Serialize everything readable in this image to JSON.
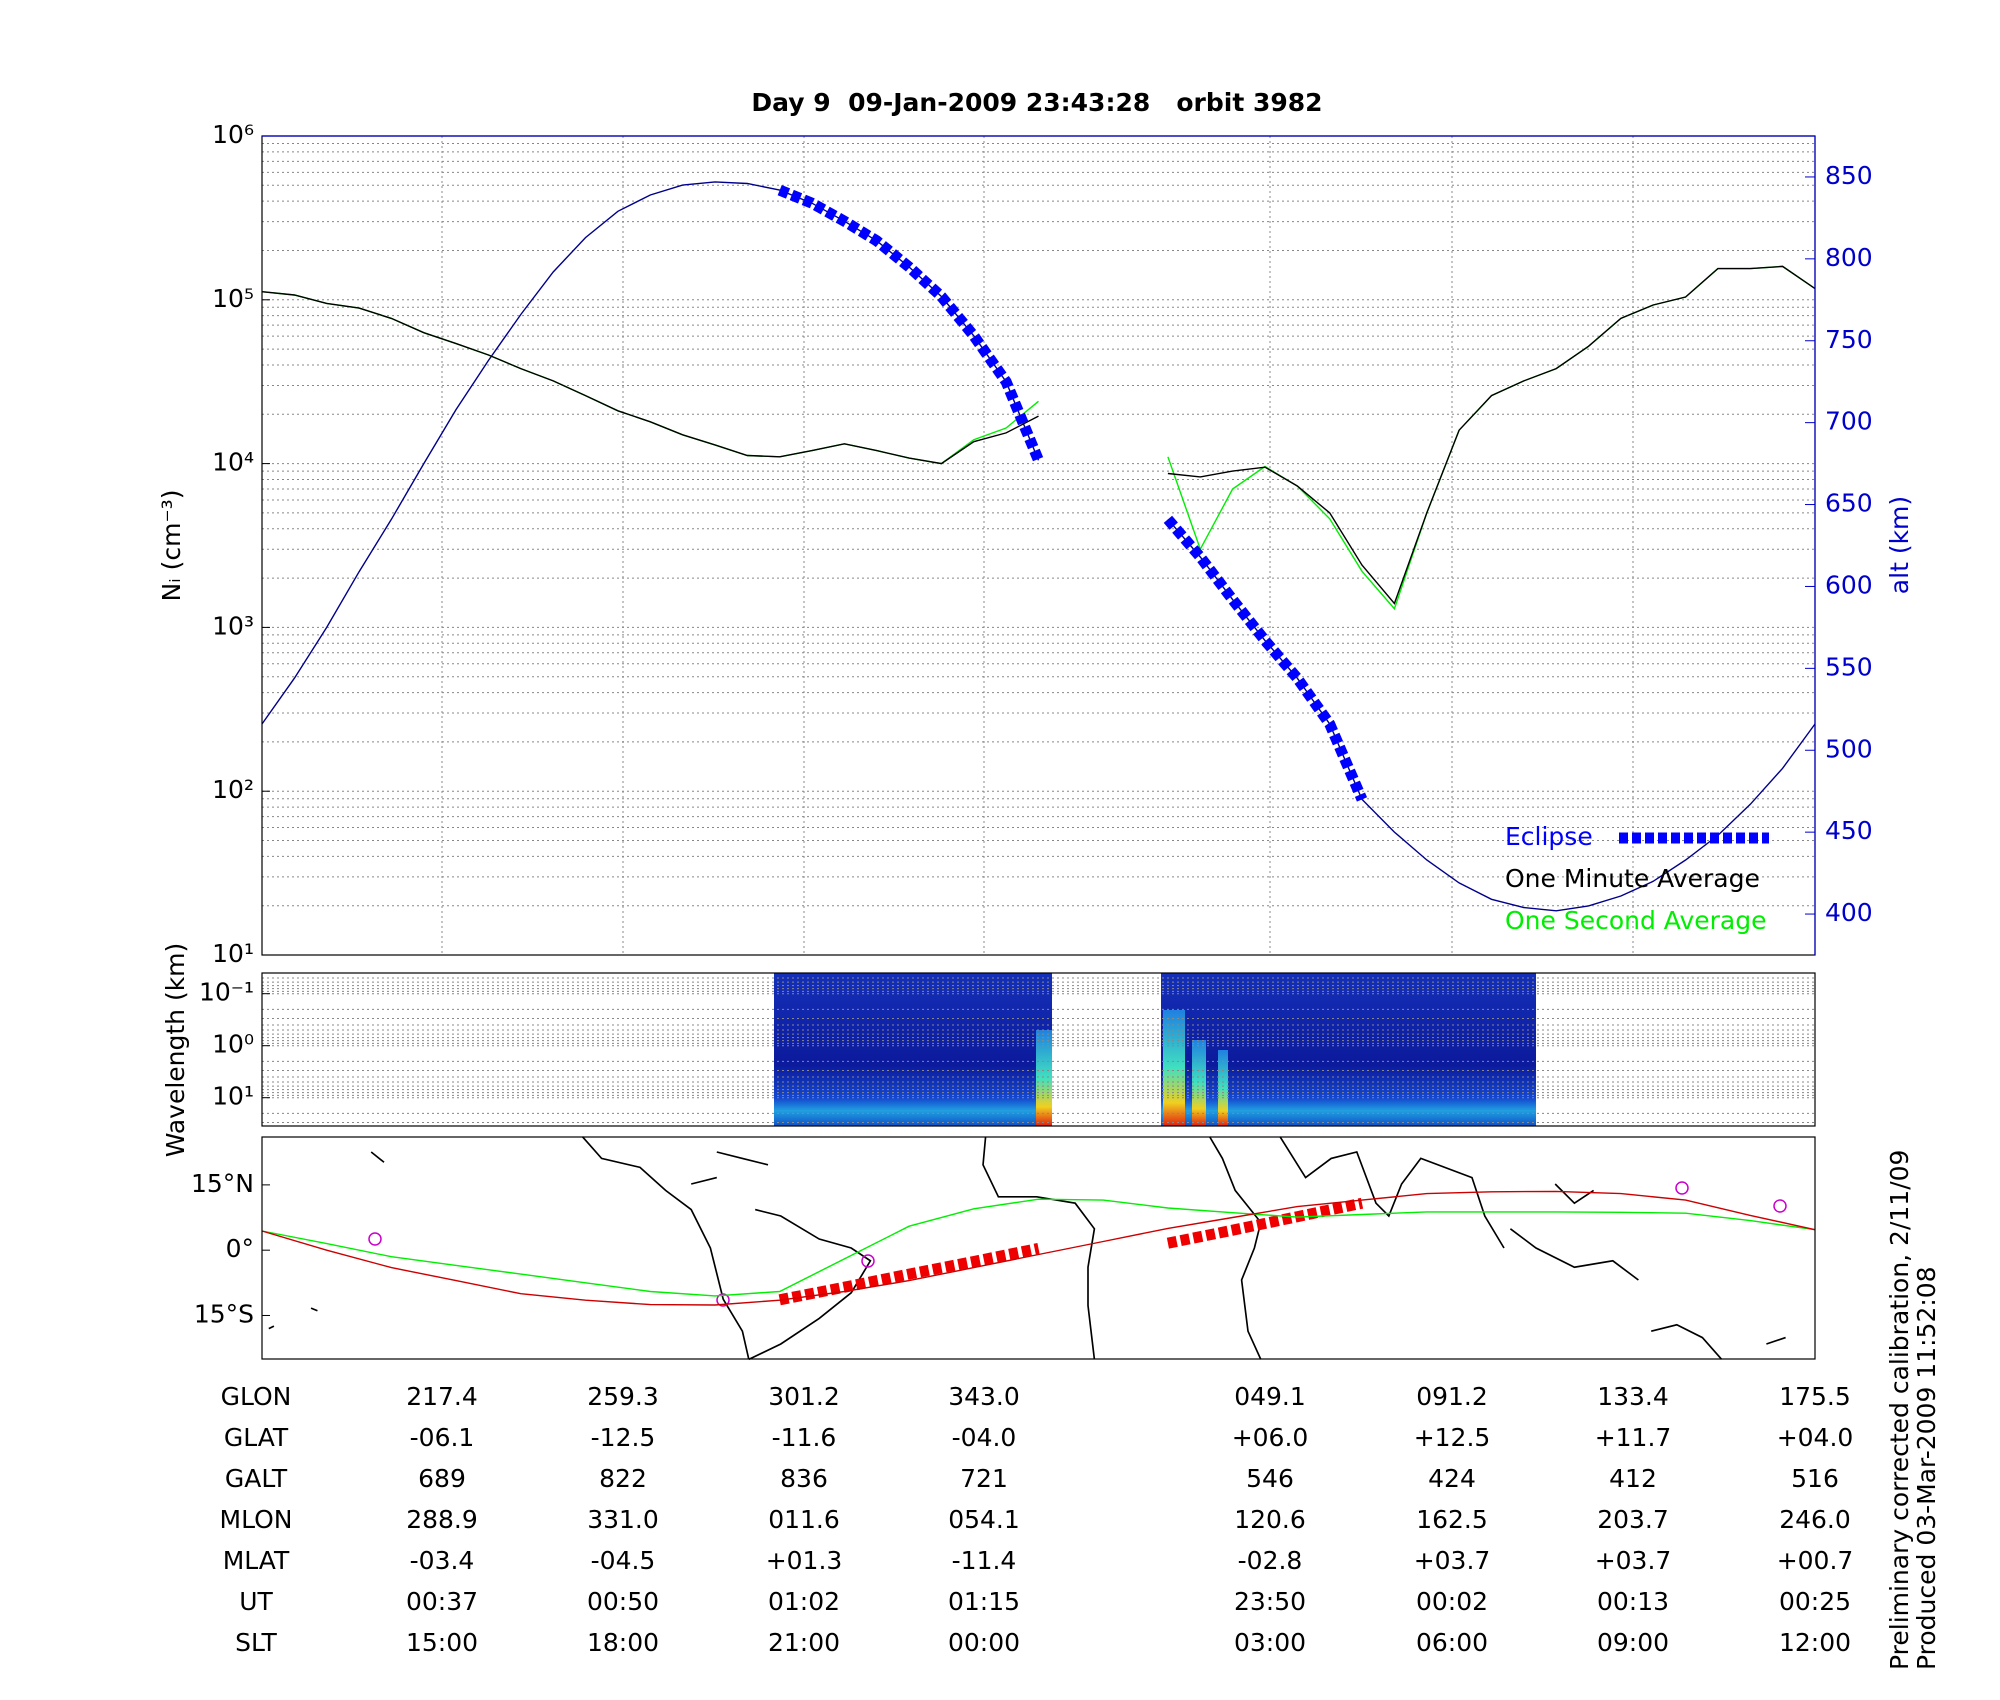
{
  "chart_data": [
    {
      "type": "line",
      "title": "Day 9  09-Jan-2009 23:43:28   orbit 3982",
      "ylabel": "Nᵢ (cm⁻³)",
      "y2label": "alt (km)",
      "log_y": true,
      "grid": true,
      "legend": "lower right",
      "y2color": "#0000cc",
      "ylim": [
        10,
        1000000
      ],
      "yticks": [
        {
          "value": 10,
          "label": "10¹"
        },
        {
          "value": 100,
          "label": "10²"
        },
        {
          "value": 1000,
          "label": "10³"
        },
        {
          "value": 10000,
          "label": "10⁴"
        },
        {
          "value": 100000,
          "label": "10⁵"
        },
        {
          "value": 1000000,
          "label": "10⁶"
        }
      ],
      "y2lim": [
        375,
        875
      ],
      "y2ticks": [
        400,
        450,
        500,
        550,
        600,
        650,
        700,
        750,
        800,
        850
      ],
      "series": [
        {
          "name": "Eclipse",
          "color": "#0000ff",
          "axis": "y2",
          "line_style": "dotted",
          "values": [
            null,
            null,
            null,
            null,
            null,
            null,
            null,
            null,
            null,
            null,
            null,
            null,
            null,
            null,
            null,
            null,
            842,
            834,
            823,
            811,
            795,
            777,
            753,
            725,
            677,
            null,
            null,
            null,
            641,
            618,
            592,
            567,
            544,
            516,
            470,
            null,
            null,
            null,
            null,
            null,
            null,
            null,
            null,
            null,
            null,
            null,
            null,
            null,
            null
          ]
        },
        {
          "name": "One Minute Average",
          "color": "#000000",
          "values": [
            112000,
            107000,
            95000,
            89000,
            77000,
            63000,
            54000,
            46000,
            38000,
            32000,
            26000,
            21000,
            18000,
            15000,
            13000,
            11200,
            11000,
            12000,
            13200,
            12000,
            10800,
            10000,
            13600,
            15400,
            19500,
            null,
            null,
            null,
            8700,
            8300,
            9000,
            9500,
            7300,
            5000,
            2400,
            1400,
            5000,
            16000,
            26000,
            32000,
            38000,
            52000,
            77000,
            93000,
            104000,
            155000,
            155000,
            160000,
            117000
          ]
        },
        {
          "name": "One Second Average",
          "color": "#00ee00",
          "values": [
            112000,
            107000,
            95000,
            89000,
            77000,
            63000,
            54000,
            46000,
            38000,
            32000,
            26000,
            21000,
            18000,
            15000,
            13000,
            11200,
            11000,
            12000,
            13200,
            12000,
            10800,
            10000,
            14000,
            16500,
            24000,
            null,
            null,
            null,
            11000,
            3000,
            7000,
            9600,
            7300,
            4600,
            2200,
            1300,
            5000,
            16000,
            26000,
            32000,
            38000,
            52000,
            77000,
            93000,
            104000,
            155000,
            155000,
            160000,
            117000
          ]
        },
        {
          "color": "#00008b",
          "axis": "y2",
          "values": [
            516,
            544,
            575,
            609,
            641,
            675,
            708,
            738,
            766,
            792,
            813,
            829,
            839,
            845,
            847,
            846,
            842,
            834,
            823,
            811,
            795,
            777,
            753,
            725,
            677,
            null,
            null,
            null,
            641,
            618,
            592,
            567,
            544,
            516,
            470,
            450,
            433,
            419,
            409,
            404,
            402,
            405,
            411,
            420,
            433,
            448,
            467,
            489,
            516
          ]
        }
      ]
    },
    {
      "type": "heatmap",
      "ylabel": "Wavelength (km)",
      "log_y": true,
      "y_inverted": true,
      "grid": true,
      "ylim": [
        0.04,
        35
      ],
      "yticks": [
        {
          "value": 0.1,
          "label": "10⁻¹"
        },
        {
          "value": 1,
          "label": "10⁰"
        },
        {
          "value": 10,
          "label": "10¹"
        }
      ]
    },
    {
      "type": "line",
      "ylim": [
        -25,
        26
      ],
      "yticks": [
        {
          "value": 15,
          "label": "15°N"
        },
        {
          "value": 0,
          "label": "0°"
        },
        {
          "value": -15,
          "label": "15°S"
        }
      ],
      "series": [
        {
          "color": "#cc0000",
          "values": [
            4.4,
            0,
            -4,
            -7,
            -10,
            -11.5,
            -12.5,
            -12.6,
            -11.5,
            -9.5,
            -7,
            -4,
            -1,
            2,
            5,
            7.5,
            10,
            11.5,
            13,
            13.4,
            13.5,
            13,
            11.5,
            8,
            4.7
          ]
        },
        {
          "color": "#00ee00",
          "values": [
            4.4,
            1.5,
            -1.5,
            -3.5,
            -5.5,
            -7.5,
            -9.5,
            -10.5,
            -9.5,
            -2,
            5.5,
            9.5,
            11.7,
            11.5,
            9.7,
            8.6,
            7.6,
            8.2,
            8.8,
            8.8,
            8.8,
            8.7,
            8.5,
            6.8,
            4.7
          ]
        },
        {
          "color": "#ee0000",
          "line_style": "dotted",
          "values": [
            null,
            null,
            null,
            null,
            null,
            null,
            null,
            null,
            -11.4,
            -8.5,
            -5.5,
            -2.6,
            0.4,
            null,
            1.6,
            4.6,
            7.7,
            10.8,
            null,
            null,
            null,
            null,
            null,
            null,
            null
          ]
        }
      ]
    }
  ],
  "table": {
    "rows": [
      [
        "GLON",
        "217.4",
        "259.3",
        "301.2",
        "343.0",
        "049.1",
        "091.2",
        "133.4",
        "175.5"
      ],
      [
        "GLAT",
        "-06.1",
        "-12.5",
        "-11.6",
        "-04.0",
        "+06.0",
        "+12.5",
        "+11.7",
        "+04.0"
      ],
      [
        "GALT",
        "689",
        "822",
        "836",
        "721",
        "546",
        "424",
        "412",
        "516"
      ],
      [
        "MLON",
        "288.9",
        "331.0",
        "011.6",
        "054.1",
        "120.6",
        "162.5",
        "203.7",
        "246.0"
      ],
      [
        "MLAT",
        "-03.4",
        "-04.5",
        "+01.3",
        "-11.4",
        "-02.8",
        "+03.7",
        "+03.7",
        "+00.7"
      ],
      [
        "UT",
        "00:37",
        "00:50",
        "01:02",
        "01:15",
        "23:50",
        "00:02",
        "00:13",
        "00:25"
      ],
      [
        "SLT",
        "15:00",
        "18:00",
        "21:00",
        "00:00",
        "03:00",
        "06:00",
        "09:00",
        "12:00"
      ]
    ]
  },
  "notes": [
    "Preliminary corrected calibration, 2/11/09",
    "Produced 03-Mar-2009 11:52:08"
  ]
}
